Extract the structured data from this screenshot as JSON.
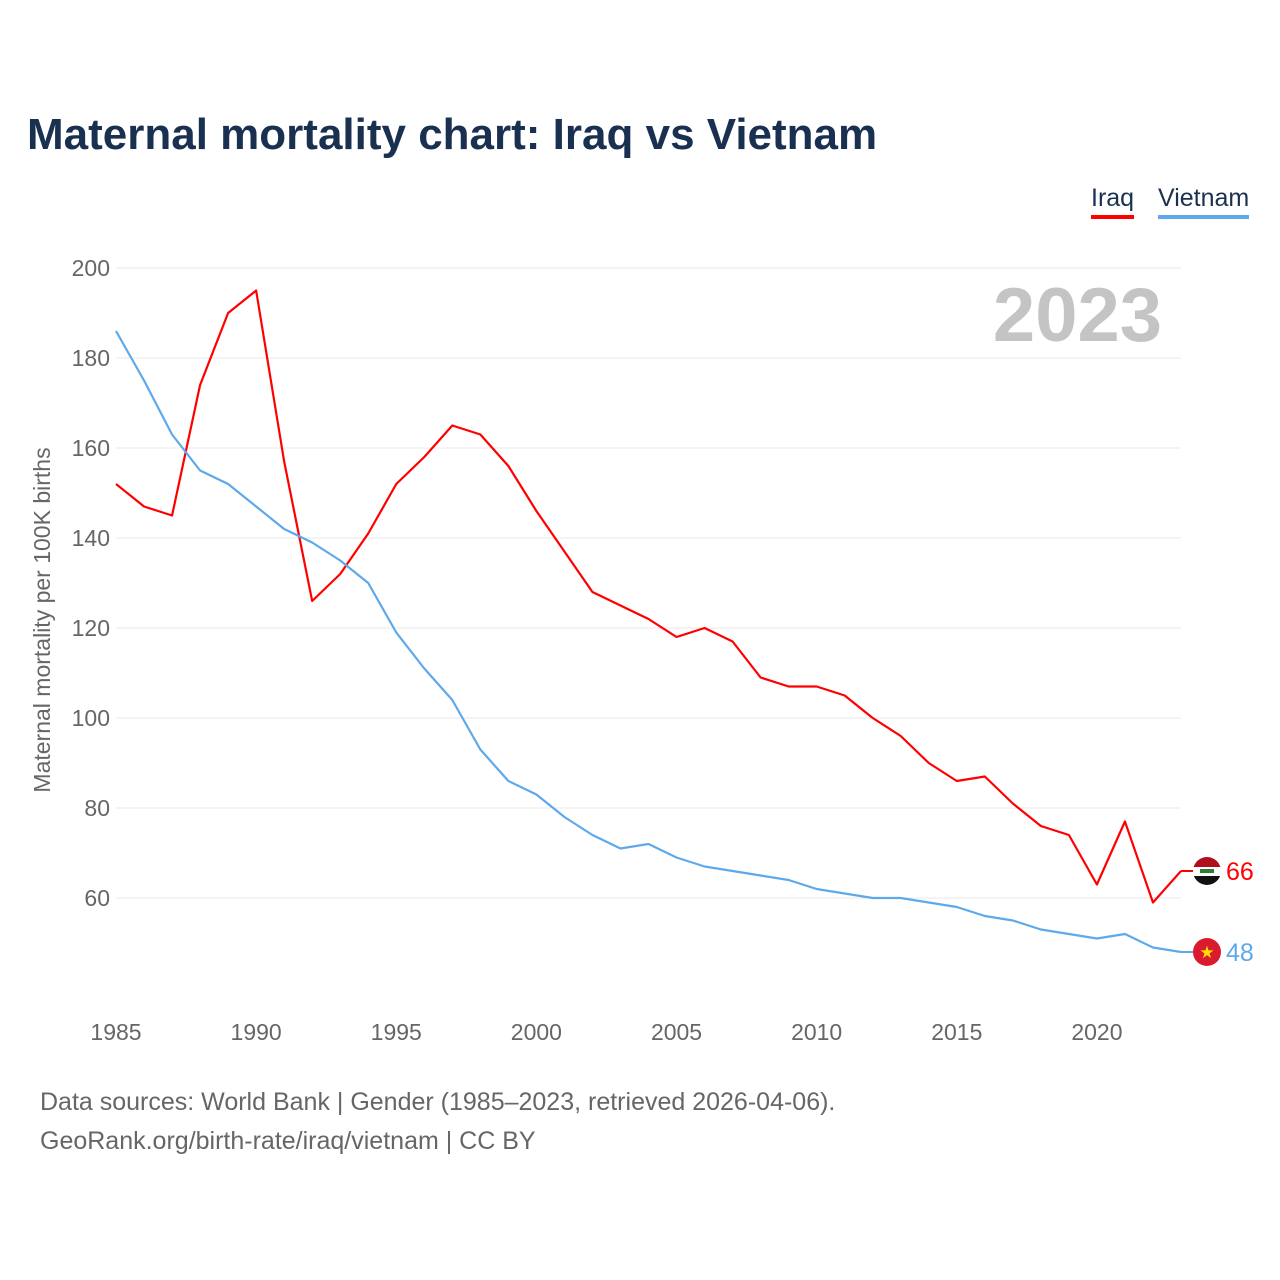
{
  "chart_data": {
    "type": "line",
    "title": "Maternal mortality chart: Iraq vs Vietnam",
    "ylabel": "Maternal mortality per 100K births",
    "xlabel": "",
    "year_label": "2023",
    "x": [
      1985,
      1986,
      1987,
      1988,
      1989,
      1990,
      1991,
      1992,
      1993,
      1994,
      1995,
      1996,
      1997,
      1998,
      1999,
      2000,
      2001,
      2002,
      2003,
      2004,
      2005,
      2006,
      2007,
      2008,
      2009,
      2010,
      2011,
      2012,
      2013,
      2014,
      2015,
      2016,
      2017,
      2018,
      2019,
      2020,
      2021,
      2022,
      2023
    ],
    "xlim": [
      1985,
      2023
    ],
    "ylim": [
      40,
      200
    ],
    "xticks": [
      "1985",
      "1990",
      "1995",
      "2000",
      "2005",
      "2010",
      "2015",
      "2020"
    ],
    "yticks": [
      "60",
      "80",
      "100",
      "120",
      "140",
      "160",
      "180",
      "200"
    ],
    "grid": true,
    "legend_position": "top-right",
    "series": [
      {
        "name": "Iraq",
        "color": "#ff0000",
        "end_label": "66",
        "flag": "iraq-flag",
        "values": [
          152,
          147,
          145,
          174,
          190,
          195,
          157,
          126,
          132,
          141,
          152,
          158,
          165,
          163,
          156,
          146,
          137,
          128,
          125,
          122,
          118,
          120,
          117,
          109,
          107,
          107,
          105,
          100,
          96,
          90,
          86,
          87,
          81,
          76,
          74,
          63,
          77,
          59,
          66
        ]
      },
      {
        "name": "Vietnam",
        "color": "#5da9ec",
        "end_label": "48",
        "flag": "vietnam-flag",
        "values": [
          186,
          175,
          163,
          155,
          152,
          147,
          142,
          139,
          135,
          130,
          119,
          111,
          104,
          93,
          86,
          83,
          78,
          74,
          71,
          72,
          69,
          67,
          66,
          65,
          64,
          62,
          61,
          60,
          60,
          59,
          58,
          56,
          55,
          53,
          52,
          51,
          52,
          49,
          48
        ]
      }
    ]
  },
  "footer": {
    "line1": "Data sources: World Bank | Gender (1985–2023, retrieved 2026-04-06).",
    "line2": "GeoRank.org/birth-rate/iraq/vietnam | CC BY"
  }
}
